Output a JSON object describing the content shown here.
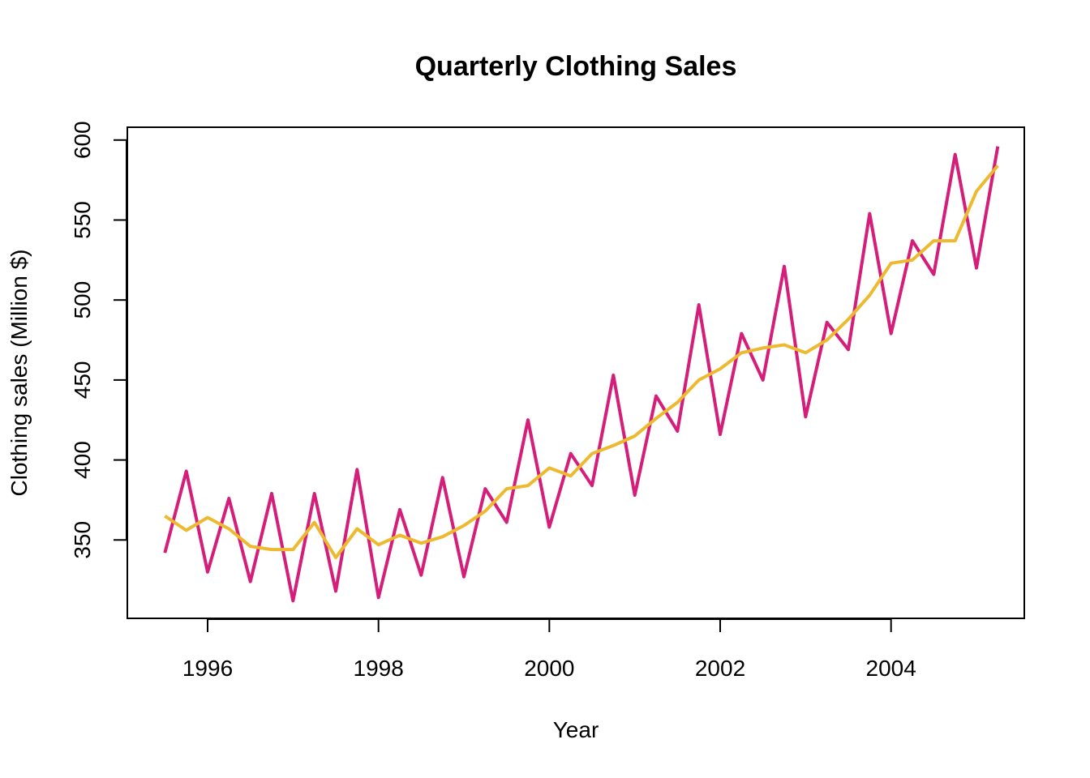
{
  "chart_data": {
    "type": "line",
    "title": "Quarterly Clothing Sales",
    "xlabel": "Year",
    "ylabel": "Clothing sales (Million $)",
    "xlim": [
      1995.06,
      2005.56
    ],
    "ylim": [
      301,
      608
    ],
    "x_ticks": [
      1996,
      1998,
      2000,
      2002,
      2004
    ],
    "y_ticks": [
      350,
      400,
      450,
      500,
      550,
      600
    ],
    "grid": false,
    "legend": "none",
    "x": [
      1995.5,
      1995.75,
      1996.0,
      1996.25,
      1996.5,
      1996.75,
      1997.0,
      1997.25,
      1997.5,
      1997.75,
      1998.0,
      1998.25,
      1998.5,
      1998.75,
      1999.0,
      1999.25,
      1999.5,
      1999.75,
      2000.0,
      2000.25,
      2000.5,
      2000.75,
      2001.0,
      2001.25,
      2001.5,
      2001.75,
      2002.0,
      2002.25,
      2002.5,
      2002.75,
      2003.0,
      2003.25,
      2003.5,
      2003.75,
      2004.0,
      2004.25,
      2004.5,
      2004.75,
      2005.0,
      2005.25
    ],
    "series": [
      {
        "color": "#D41E7A",
        "values": [
          342,
          393,
          330,
          376,
          324,
          379,
          312,
          379,
          318,
          394,
          314,
          369,
          328,
          389,
          327,
          382,
          361,
          425,
          358,
          404,
          384,
          453,
          378,
          440,
          418,
          497,
          416,
          479,
          450,
          521,
          427,
          486,
          469,
          554,
          479,
          537,
          516,
          591,
          520,
          596
        ]
      },
      {
        "color": "#EDB92E",
        "values": [
          365,
          356,
          364,
          357,
          346,
          344,
          344,
          361,
          339,
          357,
          347,
          353,
          348,
          352,
          359,
          368,
          382,
          384,
          395,
          390,
          404,
          409,
          415,
          426,
          436,
          450,
          457,
          467,
          470,
          472,
          467,
          475,
          488,
          503,
          523,
          525,
          537,
          537,
          568,
          584
        ]
      }
    ]
  }
}
